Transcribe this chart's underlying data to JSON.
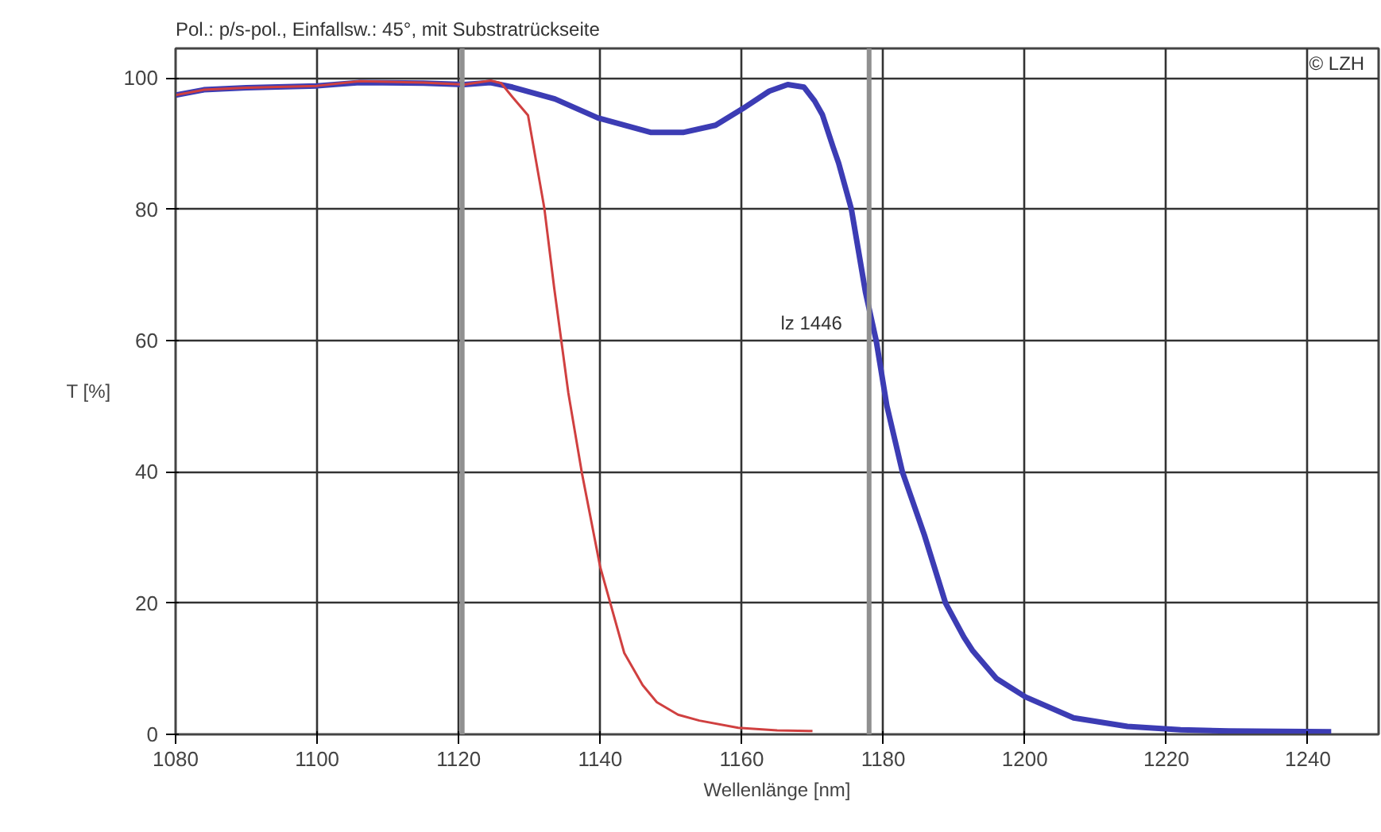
{
  "chart_data": {
    "type": "line",
    "title": "Pol.: p/s-pol., Einfallsw.: 45°, mit Substratrückseite",
    "xlabel": "Wellenlänge [nm]",
    "ylabel": "T [%]",
    "annotations": [
      "© LZH",
      "lz 1446"
    ],
    "xlim": [
      1080,
      1250
    ],
    "ylim": [
      0,
      104.5
    ],
    "xticks": [
      1080,
      1100,
      1120,
      1140,
      1160,
      1180,
      1200,
      1220,
      1240
    ],
    "yticks": [
      0,
      20,
      40,
      60,
      80,
      100
    ],
    "grid": true,
    "line_style": "solid",
    "marker": "none",
    "ref_lines": [
      {
        "axis": "x",
        "value": 1120.5,
        "color": "#909090"
      },
      {
        "axis": "x",
        "value": 1178,
        "color": "#909090"
      }
    ],
    "series": [
      {
        "color": "#3c3cb4",
        "x": [
          1080,
          1084,
          1090,
          1100,
          1106,
          1115,
          1120.8,
          1124.5,
          1127.6,
          1133.6,
          1139.7,
          1147.2,
          1151.7,
          1156.3,
          1160.1,
          1163.9,
          1166.5,
          1168.8,
          1170.3,
          1171.4,
          1172.9,
          1173.7,
          1175.5,
          1177.5,
          1179.0,
          1180.5,
          1182.7,
          1185.8,
          1188.8,
          1191.4,
          1192.6,
          1196,
          1200.1,
          1206.9,
          1214.5,
          1222,
          1228.8,
          1243.3
        ],
        "values": [
          97.4,
          98.2,
          98.5,
          98.8,
          99.3,
          99.2,
          99.0,
          99.3,
          98.6,
          96.8,
          93.9,
          91.7,
          91.7,
          92.8,
          95.3,
          98.0,
          99.0,
          98.6,
          96.5,
          94.4,
          89.5,
          87.0,
          80.0,
          67.3,
          60.0,
          50.1,
          40.0,
          30.4,
          20.0,
          14.8,
          12.8,
          8.5,
          5.7,
          2.5,
          1.2,
          0.7,
          0.5,
          0.4
        ]
      },
      {
        "color": "#d04040",
        "x": [
          1080,
          1084,
          1090,
          1100,
          1106,
          1115,
          1120.8,
          1124.5,
          1126,
          1127.6,
          1129.8,
          1132.1,
          1133.5,
          1135.5,
          1137.4,
          1140,
          1143.4,
          1146,
          1148,
          1151,
          1154,
          1159.5,
          1165,
          1170
        ],
        "values": [
          97.4,
          98.2,
          98.5,
          98.8,
          99.5,
          99.3,
          99.0,
          99.6,
          99.2,
          97.1,
          94.3,
          80.2,
          68.0,
          52.0,
          39.9,
          25.5,
          12.4,
          7.5,
          4.9,
          3.0,
          2.1,
          1.0,
          0.6,
          0.5
        ]
      }
    ]
  }
}
